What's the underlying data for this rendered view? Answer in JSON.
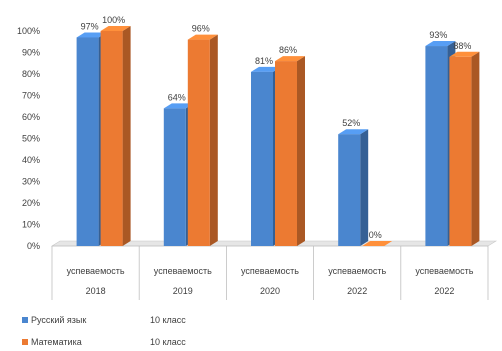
{
  "chart_data": {
    "type": "bar",
    "categories": [
      {
        "line1": "успеваемость",
        "line2": "2018"
      },
      {
        "line1": "успеваемость",
        "line2": "2019"
      },
      {
        "line1": "успеваемость",
        "line2": "2020"
      },
      {
        "line1": "успеваемость",
        "line2": "2022"
      },
      {
        "line1": "успеваемость",
        "line2": "2022"
      }
    ],
    "series": [
      {
        "name": "Русский язык",
        "grade": "10 класс",
        "color": "#4a86cf",
        "values": [
          97,
          64,
          81,
          52,
          93
        ],
        "labels": [
          "97%",
          "64%",
          "81%",
          "52%",
          "93%"
        ]
      },
      {
        "name": "Математика",
        "grade": "10 класс",
        "color": "#ec7a32",
        "values": [
          100,
          96,
          86,
          0,
          88
        ],
        "labels": [
          "100%",
          "96%",
          "86%",
          "0%",
          "88%"
        ]
      }
    ],
    "y_ticks": [
      "0%",
      "10%",
      "20%",
      "30%",
      "40%",
      "50%",
      "60%",
      "70%",
      "80%",
      "90%",
      "100%"
    ],
    "ylim": [
      0,
      100
    ],
    "legend_position": "bottom-left",
    "grid": false,
    "style": "3d-columns"
  }
}
